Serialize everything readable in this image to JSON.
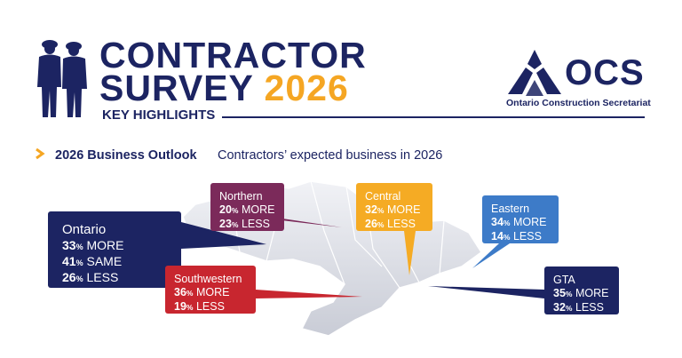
{
  "header": {
    "title_line1": "CONTRACTOR",
    "title_line2": "SURVEY",
    "title_year": "2026",
    "subtitle": "KEY HIGHLIGHTS"
  },
  "logo": {
    "abbrev": "OCS",
    "full_name": "Ontario Construction Secretariat"
  },
  "section": {
    "title": "2026 Business Outlook",
    "description": "Contractors’ expected business in 2026"
  },
  "regions": {
    "ontario": {
      "name": "Ontario",
      "more": "33",
      "same": "41",
      "less": "26"
    },
    "northern": {
      "name": "Northern",
      "more": "20",
      "less": "23"
    },
    "central": {
      "name": "Central",
      "more": "32",
      "less": "26"
    },
    "eastern": {
      "name": "Eastern",
      "more": "34",
      "less": "14"
    },
    "southwestern": {
      "name": "Southwestern",
      "more": "36",
      "less": "19"
    },
    "gta": {
      "name": "GTA",
      "more": "35",
      "less": "32"
    }
  },
  "labels": {
    "pct": "%",
    "more": " MORE",
    "same": " SAME",
    "less": " LESS"
  },
  "colors": {
    "navy": "#1c2462",
    "gold": "#f5a623",
    "northern": "#7b2a5a",
    "central": "#f5ab24",
    "eastern": "#3d7bc8",
    "southwestern": "#c8262f",
    "gta": "#1c2462"
  }
}
